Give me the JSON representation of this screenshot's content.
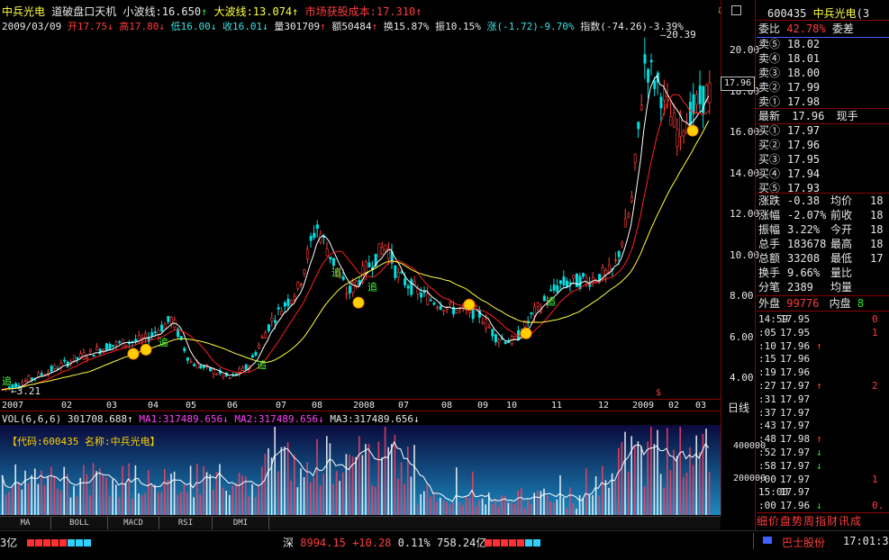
{
  "header": {
    "stock_name": "中兵光电",
    "indicator": "道破盘口天机",
    "small_wave_label": "小波线:",
    "small_wave_value": "16.650",
    "big_wave_label": "大波线:",
    "big_wave_value": "13.074",
    "cost_label": "市场获股成本:",
    "cost_value": "17.310"
  },
  "info": {
    "date": "2009/03/09",
    "open_label": "开",
    "open": "17.75",
    "high_label": "高",
    "high": "17.80",
    "low_label": "低",
    "low": "16.00",
    "close_label": "收",
    "close": "16.01",
    "volume_label": "量",
    "volume": "301709",
    "amount_label": "额",
    "amount": "50484",
    "turnover_label": "换",
    "turnover": "15.87%",
    "amplitude_label": "振",
    "amplitude": "10.15%",
    "change_label": "涨",
    "change": "(-1.72)-9.70%",
    "index_label": "指数",
    "index_change": "(-74.26)-3.39%"
  },
  "price_chart": {
    "y_ticks": [
      "20.00",
      "18.00",
      "16.00",
      "14.00",
      "12.00",
      "10.00",
      "8.00",
      "6.00",
      "4.00"
    ],
    "current_price_tag": "17.96",
    "high_annotation": "20.39",
    "low_annotation": "3.21",
    "x_labels": [
      "2007",
      "02",
      "03",
      "04",
      "05",
      "06",
      "07",
      "08",
      "2008",
      "07",
      "08",
      "09",
      "10",
      "11",
      "12",
      "2009",
      "02",
      "03"
    ],
    "period_label": "日线",
    "marker_labels": [
      "追",
      "追",
      "追",
      "追",
      "追",
      "追"
    ]
  },
  "volume_chart": {
    "title_prefix": "VOL(6,6,6)",
    "vol_value": "301708.688",
    "ma1_label": "MA1:",
    "ma1_value": "317489.656",
    "ma2_label": "MA2:",
    "ma2_value": "317489.656",
    "ma3_label": "MA3:",
    "ma3_value": "317489.656",
    "code_banner": "【代码:600435 名称:中兵光电】",
    "y_ticks": [
      "400000",
      "200000"
    ]
  },
  "tabs": [
    "MA",
    "BOLL",
    "MACD",
    "RSI",
    "DMI"
  ],
  "right_panel": {
    "code": "600435",
    "name": "中兵光电",
    "name_suffix": "(3",
    "ratio_label": "委比",
    "ratio_value": "42.78%",
    "diff_label": "委差",
    "sell_rows": [
      {
        "label": "卖⑤",
        "price": "18.02"
      },
      {
        "label": "卖④",
        "price": "18.01"
      },
      {
        "label": "卖③",
        "price": "18.00"
      },
      {
        "label": "卖②",
        "price": "17.99"
      },
      {
        "label": "卖①",
        "price": "17.98"
      }
    ],
    "last_label": "最新",
    "last_price": "17.96",
    "last_vol_label": "现手",
    "buy_rows": [
      {
        "label": "买①",
        "price": "17.97"
      },
      {
        "label": "买②",
        "price": "17.96"
      },
      {
        "label": "买③",
        "price": "17.95"
      },
      {
        "label": "买④",
        "price": "17.94"
      },
      {
        "label": "买⑤",
        "price": "17.93"
      }
    ],
    "stats": [
      {
        "l1": "涨跌",
        "v1": "-0.38",
        "l2": "均价",
        "v2": "18"
      },
      {
        "l1": "涨幅",
        "v1": "-2.07%",
        "l2": "前收",
        "v2": "18"
      },
      {
        "l1": "振幅",
        "v1": "3.22%",
        "l2": "今开",
        "v2": "18"
      },
      {
        "l1": "总手",
        "v1": "183678",
        "l2": "最高",
        "v2": "18"
      },
      {
        "l1": "总额",
        "v1": "33208",
        "l2": "最低",
        "v2": "17"
      },
      {
        "l1": "换手",
        "v1": "9.66%",
        "l2": "量比",
        "v2": ""
      },
      {
        "l1": "分笔",
        "v1": "2389",
        "l2": "均量",
        "v2": ""
      }
    ],
    "outer_label": "外盘",
    "outer_value": "99776",
    "inner_label": "内盘",
    "inner_value": "8",
    "ticks": [
      {
        "time": "14:59",
        "price": "17.95",
        "arrow": "",
        "vol": "0"
      },
      {
        "time": ":05",
        "price": "17.95",
        "arrow": "",
        "vol": "1"
      },
      {
        "time": ":10",
        "price": "17.96",
        "arrow": "↑",
        "vol": ""
      },
      {
        "time": ":15",
        "price": "17.96",
        "arrow": "",
        "vol": ""
      },
      {
        "time": ":19",
        "price": "17.96",
        "arrow": "",
        "vol": ""
      },
      {
        "time": ":27",
        "price": "17.97",
        "arrow": "↑",
        "vol": "2"
      },
      {
        "time": ":31",
        "price": "17.97",
        "arrow": "",
        "vol": ""
      },
      {
        "time": ":37",
        "price": "17.97",
        "arrow": "",
        "vol": ""
      },
      {
        "time": ":43",
        "price": "17.97",
        "arrow": "",
        "vol": ""
      },
      {
        "time": ":48",
        "price": "17.98",
        "arrow": "↑",
        "vol": ""
      },
      {
        "time": ":52",
        "price": "17.97",
        "arrow": "↓",
        "vol": ""
      },
      {
        "time": ":58",
        "price": "17.97",
        "arrow": "↓",
        "vol": ""
      },
      {
        "time": ":00",
        "price": "17.97",
        "arrow": "",
        "vol": "1"
      },
      {
        "time": "15:00",
        "price": "17.97",
        "arrow": "",
        "vol": ""
      },
      {
        "time": ":00",
        "price": "17.96",
        "arrow": "↓",
        "vol": "0."
      }
    ],
    "bottom_tabs": "细价盘势周指财讯成"
  },
  "status": {
    "left_text": "3亿",
    "index_name": "深",
    "index_value": "8994.15",
    "index_change": "+10.28",
    "index_pct": "0.11%",
    "index_amount": "758.24亿",
    "ticker_name": "巴士股份",
    "clock": "17:01:3"
  }
}
